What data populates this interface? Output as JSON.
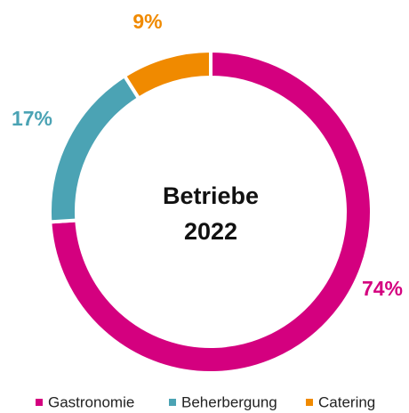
{
  "chart_data": {
    "type": "donut",
    "center_text": [
      "Betriebe",
      "2022"
    ],
    "categories": [
      "Gastronomie",
      "Beherbergung",
      "Catering"
    ],
    "values": [
      74,
      17,
      9
    ],
    "value_labels": [
      "74%",
      "17%",
      "9%"
    ],
    "colors": [
      "#d4007f",
      "#4ba3b4",
      "#f08a00"
    ],
    "legend": "bottom"
  }
}
